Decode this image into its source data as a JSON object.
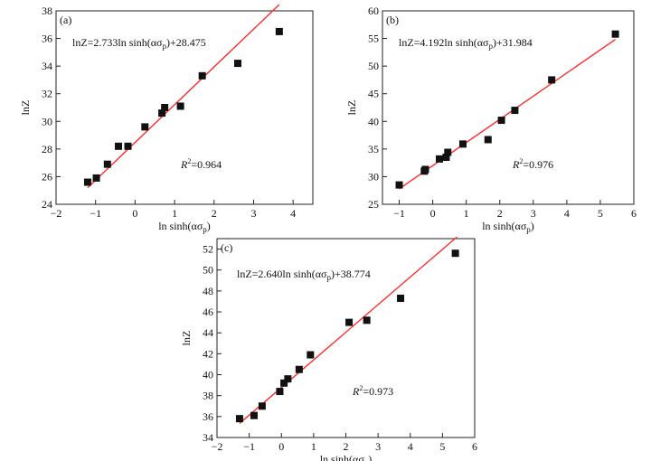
{
  "chart_data": [
    {
      "type": "scatter",
      "panel_label": "(a)",
      "xlabel": "ln sinh(ασ",
      "xlabel_sub": "p",
      "xlabel_tail": ")",
      "ylabel": "lnZ",
      "xlim": [
        -2,
        4.5
      ],
      "ylim": [
        24,
        38
      ],
      "xticks": [
        -2,
        -1,
        0,
        1,
        2,
        3,
        4
      ],
      "yticks": [
        24,
        26,
        28,
        30,
        32,
        34,
        36,
        38
      ],
      "equation": {
        "pre": "lnZ=2.733ln sinh(ασ",
        "sub": "p",
        "post": ")+28.475"
      },
      "r2": {
        "label": "R",
        "sup": "2",
        "value": "=0.964"
      },
      "fit": {
        "slope": 2.733,
        "intercept": 28.475,
        "x_range": [
          -1.2,
          3.65
        ]
      },
      "points": [
        [
          -1.2,
          25.6
        ],
        [
          -0.98,
          25.9
        ],
        [
          -0.7,
          26.9
        ],
        [
          -0.42,
          28.2
        ],
        [
          -0.18,
          28.2
        ],
        [
          0.25,
          29.6
        ],
        [
          0.68,
          30.6
        ],
        [
          0.75,
          31.0
        ],
        [
          1.15,
          31.1
        ],
        [
          1.7,
          33.3
        ],
        [
          2.6,
          34.2
        ],
        [
          3.65,
          36.5
        ]
      ]
    },
    {
      "type": "scatter",
      "panel_label": "(b)",
      "xlabel": "ln sinh(ασ",
      "xlabel_sub": "p",
      "xlabel_tail": ")",
      "ylabel": "lnZ",
      "xlim": [
        -1.5,
        6
      ],
      "ylim": [
        25,
        60
      ],
      "xticks": [
        -1,
        0,
        1,
        2,
        3,
        4,
        5,
        6
      ],
      "yticks": [
        25,
        30,
        35,
        40,
        45,
        50,
        55,
        60
      ],
      "equation": {
        "pre": "lnZ=4.192ln sinh(ασ",
        "sub": "p",
        "post": ")+31.984"
      },
      "r2": {
        "label": "R",
        "sup": "2",
        "value": "=0.976"
      },
      "fit": {
        "slope": 4.192,
        "intercept": 31.984,
        "x_range": [
          -1.0,
          5.45
        ]
      },
      "points": [
        [
          -1.0,
          28.5
        ],
        [
          -0.25,
          31.0
        ],
        [
          -0.22,
          31.3
        ],
        [
          0.2,
          33.2
        ],
        [
          0.4,
          33.5
        ],
        [
          0.45,
          34.4
        ],
        [
          0.9,
          35.9
        ],
        [
          1.65,
          36.7
        ],
        [
          2.05,
          40.2
        ],
        [
          2.45,
          42.0
        ],
        [
          3.55,
          47.5
        ],
        [
          5.45,
          55.8
        ]
      ]
    },
    {
      "type": "scatter",
      "panel_label": "(c)",
      "xlabel": "ln sinh(ασ",
      "xlabel_sub": "p",
      "xlabel_tail": ")",
      "ylabel": "lnZ",
      "xlim": [
        -2,
        6
      ],
      "ylim": [
        34,
        53
      ],
      "xticks": [
        -2,
        -1,
        0,
        1,
        2,
        3,
        4,
        5,
        6
      ],
      "yticks": [
        34,
        36,
        38,
        40,
        42,
        44,
        46,
        48,
        50,
        52
      ],
      "equation": {
        "pre": "lnZ=2.640ln sinh(ασ",
        "sub": "p",
        "post": ")+38.774"
      },
      "r2": {
        "label": "R",
        "sup": "2",
        "value": "=0.973"
      },
      "fit": {
        "slope": 2.64,
        "intercept": 38.774,
        "x_range": [
          -1.3,
          5.45
        ]
      },
      "points": [
        [
          -1.3,
          35.8
        ],
        [
          -0.85,
          36.1
        ],
        [
          -0.6,
          37.0
        ],
        [
          -0.05,
          38.4
        ],
        [
          0.08,
          39.2
        ],
        [
          0.2,
          39.6
        ],
        [
          0.55,
          40.5
        ],
        [
          0.9,
          41.9
        ],
        [
          2.1,
          45.0
        ],
        [
          2.65,
          45.2
        ],
        [
          3.7,
          47.3
        ],
        [
          5.4,
          51.6
        ]
      ]
    }
  ]
}
